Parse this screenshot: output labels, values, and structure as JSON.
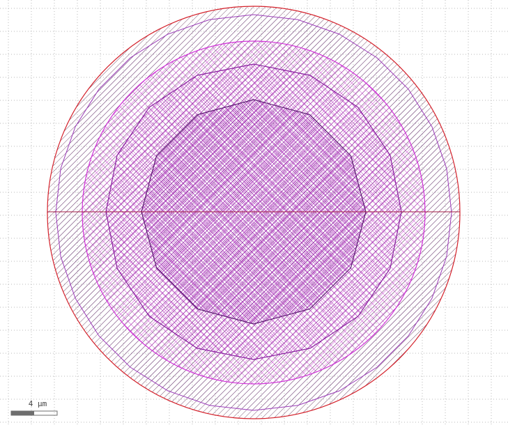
{
  "view": {
    "background": "#ffffff",
    "grid_color": "#b9b9b9",
    "grid_style": "dotted"
  },
  "layers": [
    {
      "id": "outer-ring",
      "shape": "circle",
      "stroke": "#d4202a",
      "hatch": "diagonal-single",
      "hatch_color": "#5a2a50"
    },
    {
      "id": "ring-2",
      "shape": "polygon",
      "stroke": "#9a3ab8",
      "hatch": "diagonal-single",
      "hatch_color": "#6a3a78"
    },
    {
      "id": "ring-3",
      "shape": "circle",
      "stroke": "#d030d8",
      "hatch": "cross",
      "hatch_color": "#c020c8"
    },
    {
      "id": "ring-4",
      "shape": "polygon",
      "stroke": "#8a20a0",
      "hatch": "cross",
      "hatch_color": "#a020b0"
    },
    {
      "id": "core",
      "shape": "polygon",
      "stroke": "#5a1a70",
      "hatch": "cross-dense",
      "hatch_color": "#9018a8"
    }
  ],
  "scale_bar": {
    "label": "4 µm",
    "fill_color": "#6e6e6e"
  }
}
